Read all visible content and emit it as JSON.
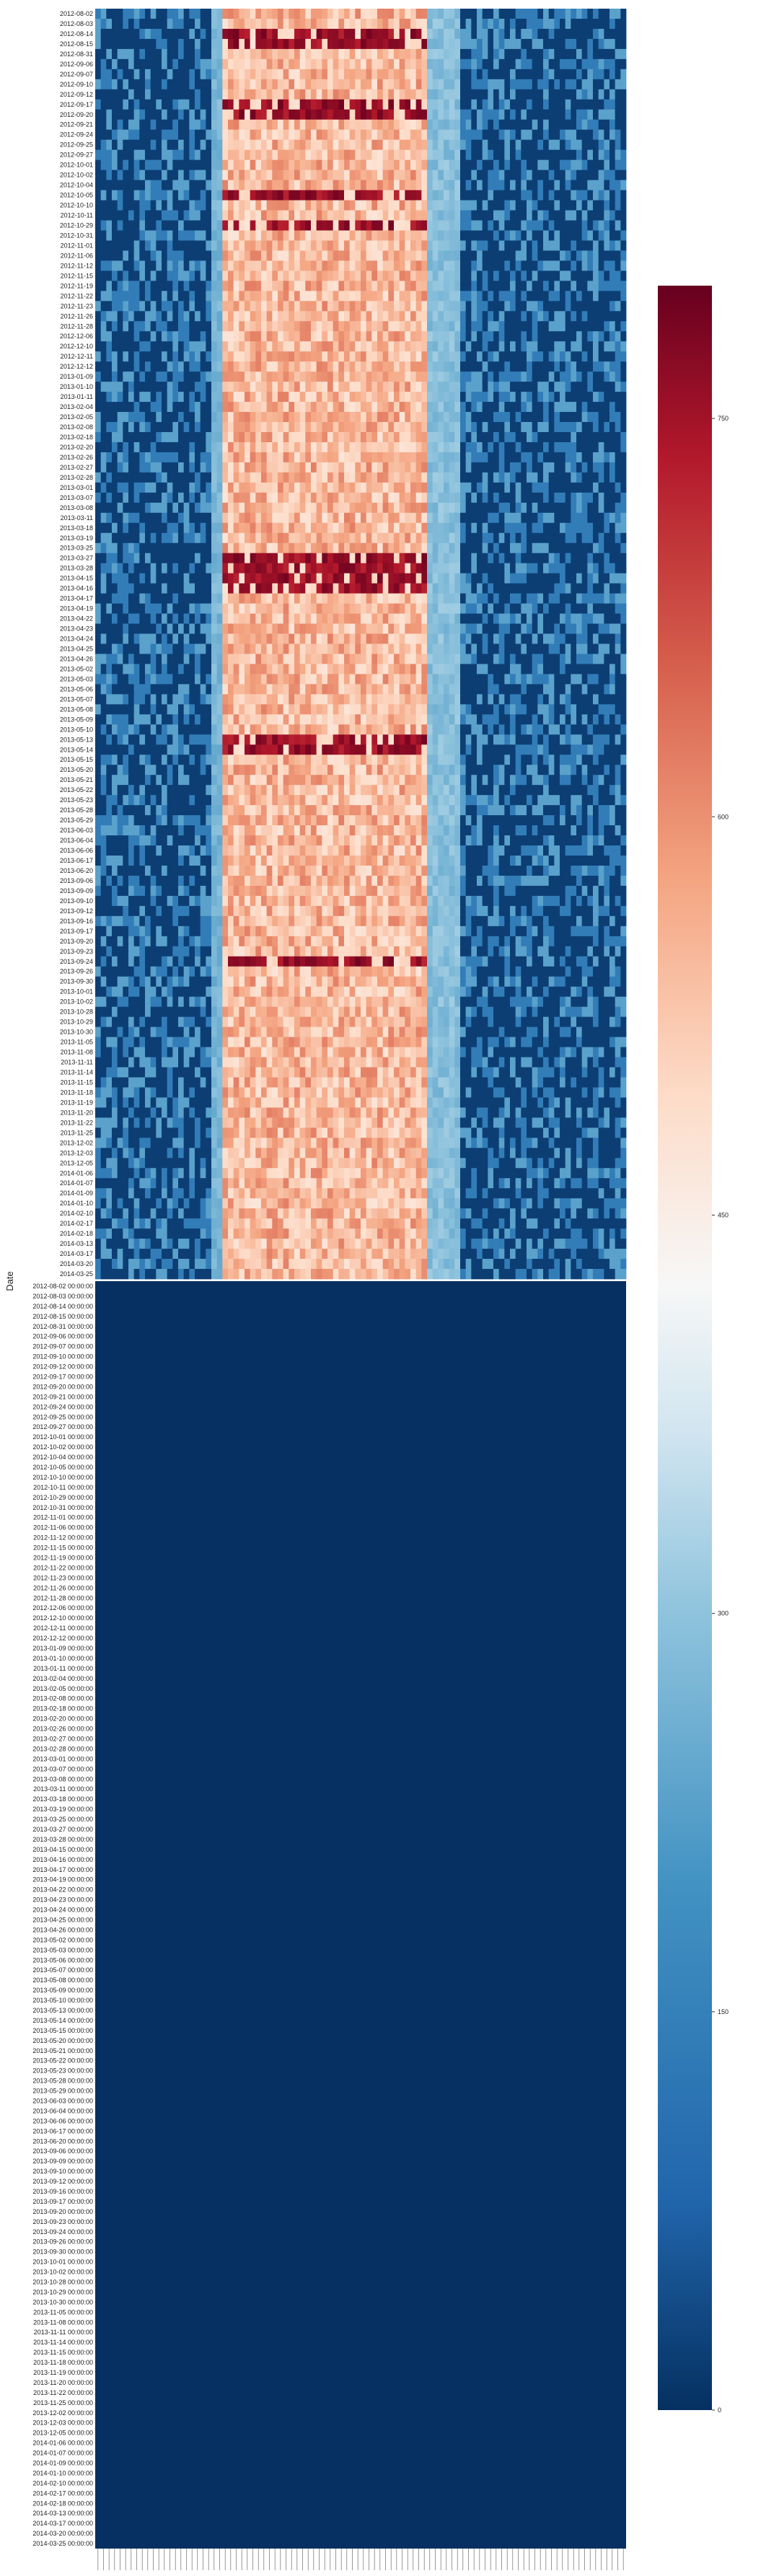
{
  "chart_data": {
    "type": "heatmap",
    "title": "",
    "ylabel": "Date",
    "xlabel": "",
    "colormap": "RdBu_r",
    "colors": {
      "low": "#053061",
      "mid": "#f7f7f7",
      "high": "#67001f"
    },
    "colorbar": {
      "min": 0,
      "max": 800,
      "ticks": [
        0,
        150,
        300,
        450,
        600,
        750
      ]
    },
    "columns": 96,
    "upper_panel_dates": [
      "2012-08-02",
      "2012-08-03",
      "2012-08-14",
      "2012-08-15",
      "2012-08-31",
      "2012-09-06",
      "2012-09-07",
      "2012-09-10",
      "2012-09-12",
      "2012-09-17",
      "2012-09-20",
      "2012-09-21",
      "2012-09-24",
      "2012-09-25",
      "2012-09-27",
      "2012-10-01",
      "2012-10-02",
      "2012-10-04",
      "2012-10-05",
      "2012-10-10",
      "2012-10-11",
      "2012-10-29",
      "2012-10-31",
      "2012-11-01",
      "2012-11-06",
      "2012-11-12",
      "2012-11-15",
      "2012-11-19",
      "2012-11-22",
      "2012-11-23",
      "2012-11-26",
      "2012-11-28",
      "2012-12-06",
      "2012-12-10",
      "2012-12-11",
      "2012-12-12",
      "2013-01-09",
      "2013-01-10",
      "2013-01-11",
      "2013-02-04",
      "2013-02-05",
      "2013-02-08",
      "2013-02-18",
      "2013-02-20",
      "2013-02-26",
      "2013-02-27",
      "2013-02-28",
      "2013-03-01",
      "2013-03-07",
      "2013-03-08",
      "2013-03-11",
      "2013-03-18",
      "2013-03-19",
      "2013-03-25",
      "2013-03-27",
      "2013-03-28",
      "2013-04-15",
      "2013-04-16",
      "2013-04-17",
      "2013-04-19",
      "2013-04-22",
      "2013-04-23",
      "2013-04-24",
      "2013-04-25",
      "2013-04-26",
      "2013-05-02",
      "2013-05-03",
      "2013-05-06",
      "2013-05-07",
      "2013-05-08",
      "2013-05-09",
      "2013-05-10",
      "2013-05-13",
      "2013-05-14",
      "2013-05-15",
      "2013-05-20",
      "2013-05-21",
      "2013-05-22",
      "2013-05-23",
      "2013-05-28",
      "2013-05-29",
      "2013-06-03",
      "2013-06-04",
      "2013-06-06",
      "2013-06-17",
      "2013-06-20",
      "2013-09-06",
      "2013-09-09",
      "2013-09-10",
      "2013-09-12",
      "2013-09-16",
      "2013-09-17",
      "2013-09-20",
      "2013-09-23",
      "2013-09-24",
      "2013-09-26",
      "2013-09-30",
      "2013-10-01",
      "2013-10-02",
      "2013-10-28",
      "2013-10-29",
      "2013-10-30",
      "2013-11-05",
      "2013-11-08",
      "2013-11-11",
      "2013-11-14",
      "2013-11-15",
      "2013-11-18",
      "2013-11-19",
      "2013-11-20",
      "2013-11-22",
      "2013-11-25",
      "2013-12-02",
      "2013-12-03",
      "2013-12-05",
      "2014-01-06",
      "2014-01-07",
      "2014-01-09",
      "2014-01-10",
      "2014-02-10",
      "2014-02-17",
      "2014-02-18",
      "2014-03-13",
      "2014-03-17",
      "2014-03-20",
      "2014-03-25"
    ],
    "lower_panel_dates": [
      "2012-08-02 00:00:00",
      "2012-08-03 00:00:00",
      "2012-08-14 00:00:00",
      "2012-08-15 00:00:00",
      "2012-08-31 00:00:00",
      "2012-09-06 00:00:00",
      "2012-09-07 00:00:00",
      "2012-09-10 00:00:00",
      "2012-09-12 00:00:00",
      "2012-09-17 00:00:00",
      "2012-09-20 00:00:00",
      "2012-09-21 00:00:00",
      "2012-09-24 00:00:00",
      "2012-09-25 00:00:00",
      "2012-09-27 00:00:00",
      "2012-10-01 00:00:00",
      "2012-10-02 00:00:00",
      "2012-10-04 00:00:00",
      "2012-10-05 00:00:00",
      "2012-10-10 00:00:00",
      "2012-10-11 00:00:00",
      "2012-10-29 00:00:00",
      "2012-10-31 00:00:00",
      "2012-11-01 00:00:00",
      "2012-11-06 00:00:00",
      "2012-11-12 00:00:00",
      "2012-11-15 00:00:00",
      "2012-11-19 00:00:00",
      "2012-11-22 00:00:00",
      "2012-11-23 00:00:00",
      "2012-11-26 00:00:00",
      "2012-11-28 00:00:00",
      "2012-12-06 00:00:00",
      "2012-12-10 00:00:00",
      "2012-12-11 00:00:00",
      "2012-12-12 00:00:00",
      "2013-01-09 00:00:00",
      "2013-01-10 00:00:00",
      "2013-01-11 00:00:00",
      "2013-02-04 00:00:00",
      "2013-02-05 00:00:00",
      "2013-02-08 00:00:00",
      "2013-02-18 00:00:00",
      "2013-02-20 00:00:00",
      "2013-02-26 00:00:00",
      "2013-02-27 00:00:00",
      "2013-02-28 00:00:00",
      "2013-03-01 00:00:00",
      "2013-03-07 00:00:00",
      "2013-03-08 00:00:00",
      "2013-03-11 00:00:00",
      "2013-03-18 00:00:00",
      "2013-03-19 00:00:00",
      "2013-03-25 00:00:00",
      "2013-03-27 00:00:00",
      "2013-03-28 00:00:00",
      "2013-04-15 00:00:00",
      "2013-04-16 00:00:00",
      "2013-04-17 00:00:00",
      "2013-04-19 00:00:00",
      "2013-04-22 00:00:00",
      "2013-04-23 00:00:00",
      "2013-04-24 00:00:00",
      "2013-04-25 00:00:00",
      "2013-04-26 00:00:00",
      "2013-05-02 00:00:00",
      "2013-05-03 00:00:00",
      "2013-05-06 00:00:00",
      "2013-05-07 00:00:00",
      "2013-05-08 00:00:00",
      "2013-05-09 00:00:00",
      "2013-05-10 00:00:00",
      "2013-05-13 00:00:00",
      "2013-05-14 00:00:00",
      "2013-05-15 00:00:00",
      "2013-05-20 00:00:00",
      "2013-05-21 00:00:00",
      "2013-05-22 00:00:00",
      "2013-05-23 00:00:00",
      "2013-05-28 00:00:00",
      "2013-05-29 00:00:00",
      "2013-06-03 00:00:00",
      "2013-06-04 00:00:00",
      "2013-06-06 00:00:00",
      "2013-06-17 00:00:00",
      "2013-06-20 00:00:00",
      "2013-09-06 00:00:00",
      "2013-09-09 00:00:00",
      "2013-09-10 00:00:00",
      "2013-09-12 00:00:00",
      "2013-09-16 00:00:00",
      "2013-09-17 00:00:00",
      "2013-09-20 00:00:00",
      "2013-09-23 00:00:00",
      "2013-09-24 00:00:00",
      "2013-09-26 00:00:00",
      "2013-09-30 00:00:00",
      "2013-10-01 00:00:00",
      "2013-10-02 00:00:00",
      "2013-10-28 00:00:00",
      "2013-10-29 00:00:00",
      "2013-10-30 00:00:00",
      "2013-11-05 00:00:00",
      "2013-11-08 00:00:00",
      "2013-11-11 00:00:00",
      "2013-11-14 00:00:00",
      "2013-11-15 00:00:00",
      "2013-11-18 00:00:00",
      "2013-11-19 00:00:00",
      "2013-11-20 00:00:00",
      "2013-11-22 00:00:00",
      "2013-11-25 00:00:00",
      "2013-12-02 00:00:00",
      "2013-12-03 00:00:00",
      "2013-12-05 00:00:00",
      "2014-01-06 00:00:00",
      "2014-01-07 00:00:00",
      "2014-01-09 00:00:00",
      "2014-01-10 00:00:00",
      "2014-02-10 00:00:00",
      "2014-02-17 00:00:00",
      "2014-02-18 00:00:00",
      "2014-03-13 00:00:00",
      "2014-03-17 00:00:00",
      "2014-03-20 00:00:00",
      "2014-03-25 00:00:00"
    ],
    "column_profile": {
      "zones": [
        {
          "from_col": 0,
          "to_col": 21,
          "typical_value": 40,
          "description": "mostly low, speckled with medium-blue cells"
        },
        {
          "from_col": 21,
          "to_col": 23,
          "typical_value": 280,
          "description": "light-blue vertical band"
        },
        {
          "from_col": 23,
          "to_col": 60,
          "typical_value": 560,
          "description": "high values, salmon to dark red"
        },
        {
          "from_col": 60,
          "to_col": 66,
          "typical_value": 300,
          "description": "light-blue vertical band"
        },
        {
          "from_col": 66,
          "to_col": 96,
          "typical_value": 40,
          "description": "mostly low, speckled with medium-blue cells"
        }
      ],
      "hot_rows": [
        "2012-08-14",
        "2012-08-15",
        "2012-09-17",
        "2012-09-20",
        "2012-10-05",
        "2012-10-29",
        "2013-03-27",
        "2013-03-28",
        "2013-04-15",
        "2013-04-16",
        "2013-05-13",
        "2013-05-14",
        "2013-09-24"
      ],
      "lower_panel_value": 0
    }
  }
}
